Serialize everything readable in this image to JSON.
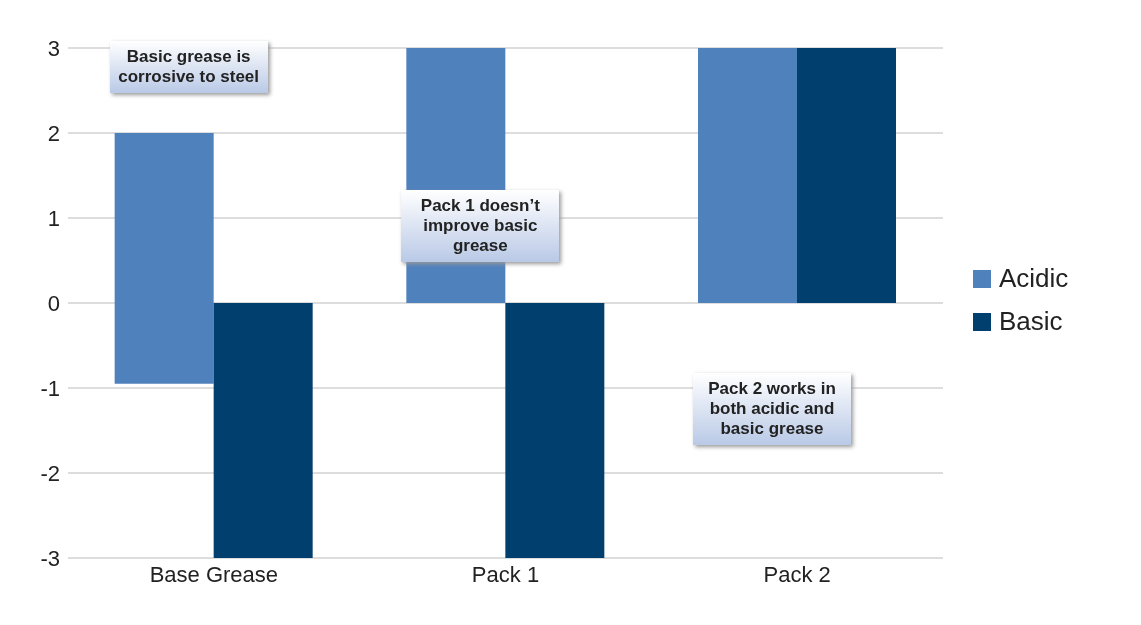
{
  "chart_data": {
    "type": "bar",
    "categories": [
      "Base Grease",
      "Pack 1",
      "Pack 2"
    ],
    "series": [
      {
        "name": "Acidic",
        "color": "#4f81bd",
        "base": [
          -0.95,
          0,
          0
        ],
        "values": [
          2.95,
          3,
          3
        ]
      },
      {
        "name": "Basic",
        "color": "#003f6e",
        "values": [
          -3,
          -3,
          3
        ]
      }
    ],
    "ylim": [
      -3,
      3
    ],
    "yticks": [
      -3,
      -2,
      -1,
      0,
      1,
      2,
      3
    ],
    "grid": "y",
    "legend": "right",
    "annotations": [
      "Basic grease is corrosive to steel",
      "Pack 1 doesn’t improve basic grease",
      "Pack 2 works in both acidic and basic grease"
    ]
  }
}
